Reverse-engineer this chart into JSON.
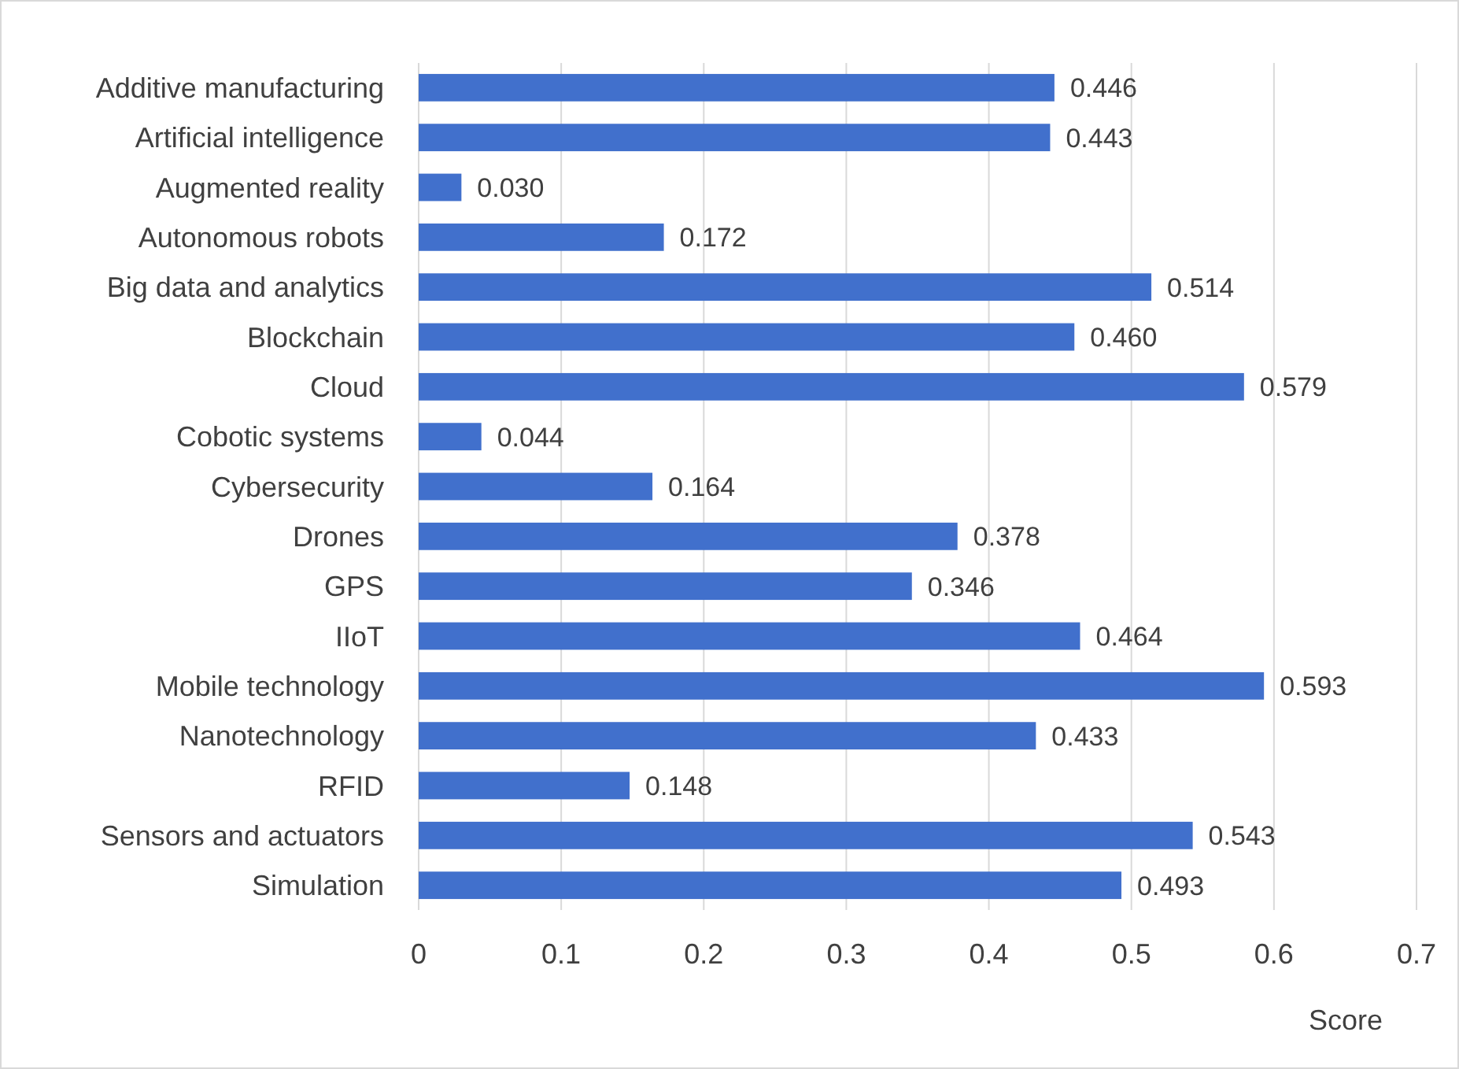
{
  "chart_data": {
    "type": "bar",
    "orientation": "horizontal",
    "xlabel": "Score",
    "categories": [
      "Additive manufacturing",
      "Artificial intelligence",
      "Augmented reality",
      "Autonomous robots",
      "Big data and analytics",
      "Blockchain",
      "Cloud",
      "Cobotic systems",
      "Cybersecurity",
      "Drones",
      "GPS",
      "IIoT",
      "Mobile technology",
      "Nanotechnology",
      "RFID",
      "Sensors and actuators",
      "Simulation"
    ],
    "values": [
      0.446,
      0.443,
      0.03,
      0.172,
      0.514,
      0.46,
      0.579,
      0.044,
      0.164,
      0.378,
      0.346,
      0.464,
      0.593,
      0.433,
      0.148,
      0.543,
      0.493
    ],
    "value_labels": [
      "0.446",
      "0.443",
      "0.030",
      "0.172",
      "0.514",
      "0.460",
      "0.579",
      "0.044",
      "0.164",
      "0.378",
      "0.346",
      "0.464",
      "0.593",
      "0.433",
      "0.148",
      "0.543",
      "0.493"
    ],
    "color": "#4170cc",
    "xlim": [
      0,
      0.7
    ],
    "xticks": [
      0,
      0.1,
      0.2,
      0.3,
      0.4,
      0.5,
      0.6,
      0.7
    ],
    "grid": "x"
  }
}
